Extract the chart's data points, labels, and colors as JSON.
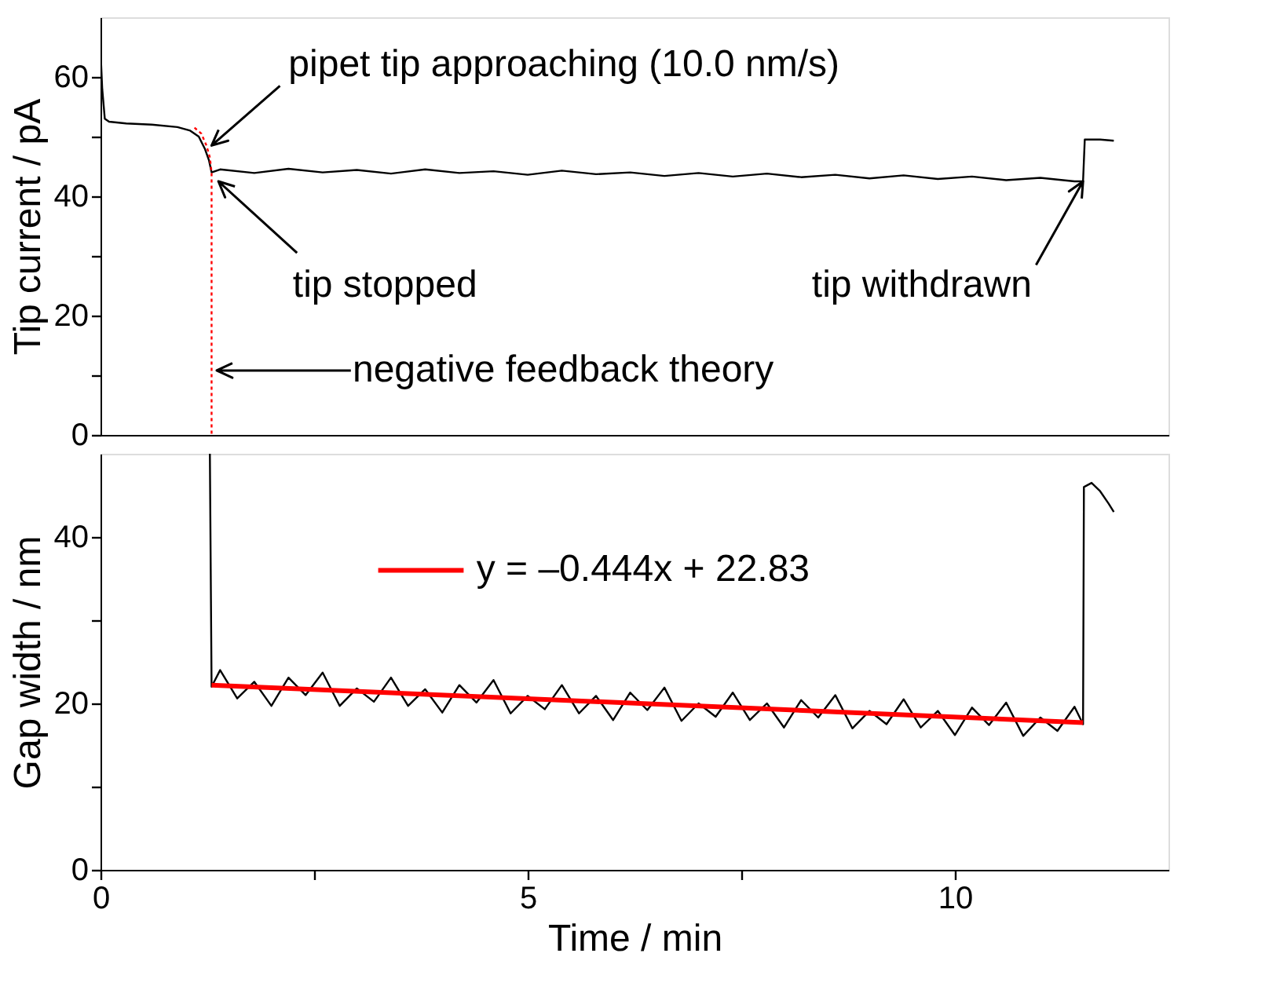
{
  "chart_data": [
    {
      "type": "line",
      "ylabel": "Tip current / pA",
      "xlim": [
        0,
        12.5
      ],
      "ylim": [
        0,
        70
      ],
      "yticks": [
        0,
        {
          "value": 10,
          "label": null
        },
        20,
        {
          "value": 30,
          "label": null
        },
        40,
        {
          "value": 50,
          "label": null
        },
        60
      ],
      "tick_labels": "y",
      "grid": false,
      "legend": false,
      "series": [
        {
          "color": "#000000",
          "x": [
            0,
            0.02,
            0.05,
            0.1,
            0.3,
            0.6,
            0.9,
            1.05,
            1.15,
            1.22,
            1.27,
            1.3,
            1.4,
            1.8,
            2.2,
            2.6,
            3.0,
            3.4,
            3.8,
            4.2,
            4.6,
            5.0,
            5.4,
            5.8,
            6.2,
            6.6,
            7.0,
            7.4,
            7.8,
            8.2,
            8.6,
            9.0,
            9.4,
            9.8,
            10.2,
            10.6,
            11.0,
            11.4,
            11.5,
            11.52,
            11.7,
            11.86
          ],
          "values": [
            64.5,
            58,
            53,
            52.5,
            52.2,
            52,
            51.6,
            51,
            50,
            48,
            46,
            44,
            44.5,
            43.9,
            44.6,
            44.0,
            44.4,
            43.8,
            44.5,
            43.9,
            44.2,
            43.6,
            44.3,
            43.7,
            44.0,
            43.4,
            43.9,
            43.3,
            43.8,
            43.2,
            43.6,
            43.0,
            43.5,
            42.9,
            43.3,
            42.7,
            43.1,
            42.5,
            42.5,
            49.5,
            49.5,
            49.3
          ]
        },
        {
          "color": "#ff0000",
          "line_style": "dotted",
          "x": [
            1.1,
            1.18,
            1.24,
            1.28,
            1.3,
            1.3
          ],
          "values": [
            51.5,
            50.5,
            48.5,
            46.5,
            44,
            0
          ]
        }
      ],
      "annotations": [
        {
          "text": "pipet tip approaching (10.0 nm/s)",
          "x": 1.3,
          "y": 48.5
        },
        {
          "text": "tip stopped",
          "x": 1.38,
          "y": 42.5
        },
        {
          "text": "tip withdrawn",
          "x": 11.5,
          "y": 42.5
        },
        "negative feedback theory"
      ]
    },
    {
      "type": "line",
      "xlabel": "Time / min",
      "ylabel": "Gap width / nm",
      "xlim": [
        0,
        12.5
      ],
      "ylim": [
        0,
        50
      ],
      "xticks": [
        0,
        {
          "value": 2.5,
          "label": null
        },
        5,
        {
          "value": 7.5,
          "label": null
        },
        10
      ],
      "yticks": [
        0,
        {
          "value": 10,
          "label": null
        },
        20,
        {
          "value": 30,
          "label": null
        },
        40
      ],
      "grid": false,
      "legend": "top",
      "series": [
        {
          "color": "#000000",
          "x": [
            1.28,
            1.3,
            1.4,
            1.6,
            1.8,
            2.0,
            2.2,
            2.4,
            2.6,
            2.8,
            3.0,
            3.2,
            3.4,
            3.6,
            3.8,
            4.0,
            4.2,
            4.4,
            4.6,
            4.8,
            5.0,
            5.2,
            5.4,
            5.6,
            5.8,
            6.0,
            6.2,
            6.4,
            6.6,
            6.8,
            7.0,
            7.2,
            7.4,
            7.6,
            7.8,
            8.0,
            8.2,
            8.4,
            8.6,
            8.8,
            9.0,
            9.2,
            9.4,
            9.6,
            9.8,
            10.0,
            10.2,
            10.4,
            10.6,
            10.8,
            11.0,
            11.2,
            11.4,
            11.5,
            11.51,
            11.6,
            11.7,
            11.8,
            11.86
          ],
          "values": [
            50,
            22,
            24.0,
            20.6,
            22.6,
            19.7,
            23.1,
            21.0,
            23.7,
            19.7,
            21.8,
            20.2,
            23.1,
            19.7,
            21.7,
            18.9,
            22.2,
            20.1,
            22.8,
            18.8,
            20.9,
            19.3,
            22.2,
            18.8,
            20.9,
            18.0,
            21.3,
            19.2,
            21.9,
            17.9,
            20.0,
            18.4,
            21.3,
            18.0,
            20.0,
            17.1,
            20.4,
            18.3,
            21.0,
            17.0,
            19.1,
            17.5,
            20.5,
            17.1,
            19.1,
            16.2,
            19.5,
            17.4,
            20.1,
            16.1,
            18.3,
            16.7,
            19.6,
            17.5,
            46,
            46.5,
            45.5,
            44,
            43
          ]
        },
        {
          "name": "y = –0.444x + 22.83",
          "color": "#ff0000",
          "x": [
            1.3,
            11.5
          ],
          "values": [
            22.2,
            17.7
          ]
        }
      ]
    }
  ]
}
